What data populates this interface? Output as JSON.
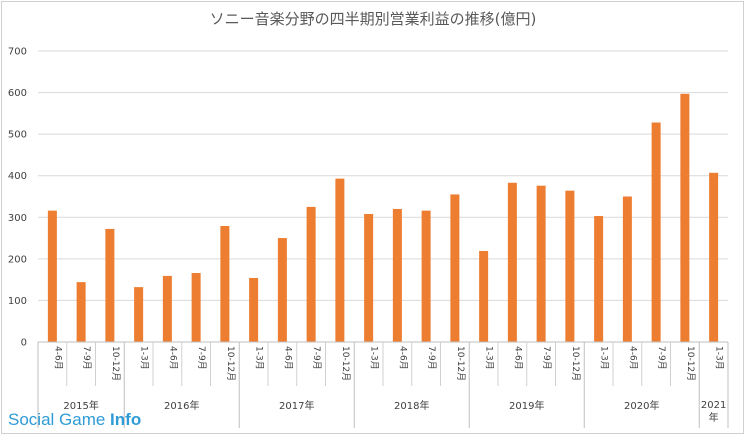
{
  "chart_data": {
    "type": "bar",
    "title": "ソニー音楽分野の四半期別営業利益の推移(億円)",
    "ylim": [
      0,
      700
    ],
    "yticks": [
      0,
      100,
      200,
      300,
      400,
      500,
      600,
      700
    ],
    "grid": true,
    "bar_color": "#ed7d31",
    "categories": [
      {
        "year": "2015年",
        "quarter": "4-6月",
        "value": 316
      },
      {
        "year": "2015年",
        "quarter": "7-9月",
        "value": 144
      },
      {
        "year": "2015年",
        "quarter": "10-12月",
        "value": 272
      },
      {
        "year": "2016年",
        "quarter": "1-3月",
        "value": 132
      },
      {
        "year": "2016年",
        "quarter": "4-6月",
        "value": 159
      },
      {
        "year": "2016年",
        "quarter": "7-9月",
        "value": 166
      },
      {
        "year": "2016年",
        "quarter": "10-12月",
        "value": 279
      },
      {
        "year": "2017年",
        "quarter": "1-3月",
        "value": 154
      },
      {
        "year": "2017年",
        "quarter": "4-6月",
        "value": 250
      },
      {
        "year": "2017年",
        "quarter": "7-9月",
        "value": 325
      },
      {
        "year": "2017年",
        "quarter": "10-12月",
        "value": 393
      },
      {
        "year": "2018年",
        "quarter": "1-3月",
        "value": 308
      },
      {
        "year": "2018年",
        "quarter": "4-6月",
        "value": 320
      },
      {
        "year": "2018年",
        "quarter": "7-9月",
        "value": 316
      },
      {
        "year": "2018年",
        "quarter": "10-12月",
        "value": 355
      },
      {
        "year": "2019年",
        "quarter": "1-3月",
        "value": 219
      },
      {
        "year": "2019年",
        "quarter": "4-6月",
        "value": 383
      },
      {
        "year": "2019年",
        "quarter": "7-9月",
        "value": 376
      },
      {
        "year": "2019年",
        "quarter": "10-12月",
        "value": 364
      },
      {
        "year": "2020年",
        "quarter": "1-3月",
        "value": 303
      },
      {
        "year": "2020年",
        "quarter": "4-6月",
        "value": 350
      },
      {
        "year": "2020年",
        "quarter": "7-9月",
        "value": 528
      },
      {
        "year": "2020年",
        "quarter": "10-12月",
        "value": 597
      },
      {
        "year": "2021年",
        "quarter": "1-3月",
        "value": 407
      }
    ],
    "years": [
      "2015年",
      "2016年",
      "2017年",
      "2018年",
      "2019年",
      "2020年",
      "2021年"
    ]
  },
  "watermark": {
    "part1": "Social Game ",
    "part2": "Info"
  }
}
